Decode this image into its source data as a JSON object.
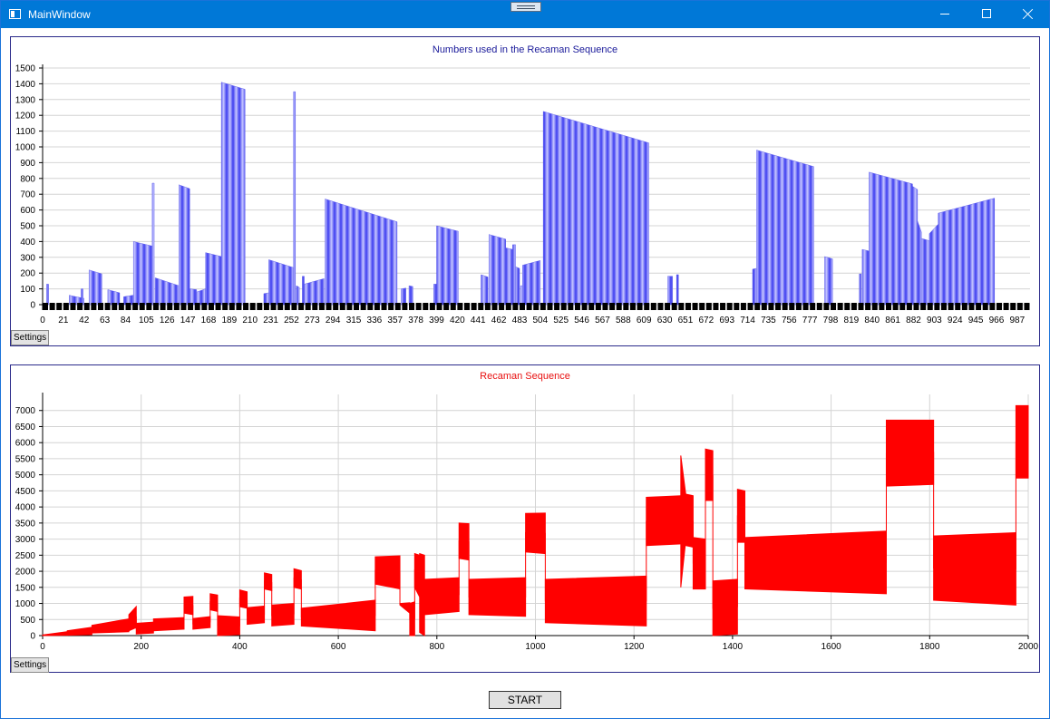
{
  "window": {
    "title": "MainWindow",
    "accent": "#0078d7"
  },
  "top_panel": {
    "settings_label": "Settings"
  },
  "bottom_panel": {
    "settings_label": "Settings"
  },
  "start_label": "START",
  "chart_data": [
    {
      "type": "bar",
      "title": "Numbers used in the Recaman Sequence",
      "title_color": "#1a1a9a",
      "bar_color": "#6a6aff",
      "ylim": [
        0,
        1500
      ],
      "y_ticks": [
        0,
        100,
        200,
        300,
        400,
        500,
        600,
        700,
        800,
        900,
        1000,
        1100,
        1200,
        1300,
        1400,
        1500
      ],
      "x_ticks": [
        0,
        21,
        42,
        63,
        84,
        105,
        126,
        147,
        168,
        189,
        210,
        231,
        252,
        273,
        294,
        315,
        336,
        357,
        378,
        399,
        420,
        441,
        462,
        483,
        504,
        525,
        546,
        567,
        588,
        609,
        630,
        651,
        672,
        693,
        714,
        735,
        756,
        777,
        798,
        819,
        840,
        861,
        882,
        903,
        924,
        945,
        966,
        987
      ],
      "xlim": [
        0,
        1000
      ],
      "grid": true,
      "segments": [
        {
          "x0": 4,
          "x1": 6,
          "y0": 130,
          "y1": 130
        },
        {
          "x0": 27,
          "x1": 30,
          "y0": 60,
          "y1": 55
        },
        {
          "x0": 30,
          "x1": 42,
          "y0": 55,
          "y1": 40
        },
        {
          "x0": 39,
          "x1": 41,
          "y0": 100,
          "y1": 100
        },
        {
          "x0": 47,
          "x1": 60,
          "y0": 220,
          "y1": 195
        },
        {
          "x0": 66,
          "x1": 78,
          "y0": 95,
          "y1": 75
        },
        {
          "x0": 82,
          "x1": 92,
          "y0": 50,
          "y1": 60
        },
        {
          "x0": 92,
          "x1": 112,
          "y0": 400,
          "y1": 370
        },
        {
          "x0": 111,
          "x1": 113,
          "y0": 770,
          "y1": 770
        },
        {
          "x0": 114,
          "x1": 138,
          "y0": 170,
          "y1": 120
        },
        {
          "x0": 138,
          "x1": 149,
          "y0": 760,
          "y1": 735
        },
        {
          "x0": 149,
          "x1": 156,
          "y0": 100,
          "y1": 95
        },
        {
          "x0": 156,
          "x1": 165,
          "y0": 80,
          "y1": 100
        },
        {
          "x0": 165,
          "x1": 181,
          "y0": 330,
          "y1": 305
        },
        {
          "x0": 181,
          "x1": 205,
          "y0": 1410,
          "y1": 1365
        },
        {
          "x0": 224,
          "x1": 229,
          "y0": 70,
          "y1": 75
        },
        {
          "x0": 229,
          "x1": 254,
          "y0": 285,
          "y1": 235
        },
        {
          "x0": 254,
          "x1": 256,
          "y0": 1350,
          "y1": 1350
        },
        {
          "x0": 257,
          "x1": 260,
          "y0": 120,
          "y1": 110
        },
        {
          "x0": 263,
          "x1": 265,
          "y0": 180,
          "y1": 180
        },
        {
          "x0": 265,
          "x1": 285,
          "y0": 130,
          "y1": 165
        },
        {
          "x0": 286,
          "x1": 359,
          "y0": 670,
          "y1": 525
        },
        {
          "x0": 363,
          "x1": 368,
          "y0": 100,
          "y1": 105
        },
        {
          "x0": 371,
          "x1": 375,
          "y0": 120,
          "y1": 115
        },
        {
          "x0": 396,
          "x1": 399,
          "y0": 130,
          "y1": 130
        },
        {
          "x0": 399,
          "x1": 421,
          "y0": 500,
          "y1": 465
        },
        {
          "x0": 444,
          "x1": 451,
          "y0": 190,
          "y1": 175
        },
        {
          "x0": 452,
          "x1": 469,
          "y0": 445,
          "y1": 415
        },
        {
          "x0": 469,
          "x1": 476,
          "y0": 360,
          "y1": 350
        },
        {
          "x0": 476,
          "x1": 479,
          "y0": 380,
          "y1": 380
        },
        {
          "x0": 479,
          "x1": 483,
          "y0": 240,
          "y1": 230
        },
        {
          "x0": 484,
          "x1": 486,
          "y0": 120,
          "y1": 120
        },
        {
          "x0": 486,
          "x1": 504,
          "y0": 250,
          "y1": 280
        },
        {
          "x0": 507,
          "x1": 614,
          "y0": 1225,
          "y1": 1025
        },
        {
          "x0": 633,
          "x1": 638,
          "y0": 180,
          "y1": 180
        },
        {
          "x0": 642,
          "x1": 644,
          "y0": 190,
          "y1": 190
        },
        {
          "x0": 719,
          "x1": 723,
          "y0": 225,
          "y1": 230
        },
        {
          "x0": 723,
          "x1": 781,
          "y0": 980,
          "y1": 875
        },
        {
          "x0": 792,
          "x1": 800,
          "y0": 305,
          "y1": 290
        },
        {
          "x0": 827,
          "x1": 829,
          "y0": 195,
          "y1": 195
        },
        {
          "x0": 830,
          "x1": 837,
          "y0": 350,
          "y1": 340
        },
        {
          "x0": 837,
          "x1": 881,
          "y0": 840,
          "y1": 765
        },
        {
          "x0": 881,
          "x1": 886,
          "y0": 750,
          "y1": 730
        },
        {
          "x0": 886,
          "x1": 890,
          "y0": 530,
          "y1": 460
        },
        {
          "x0": 890,
          "x1": 898,
          "y0": 420,
          "y1": 405
        },
        {
          "x0": 898,
          "x1": 907,
          "y0": 450,
          "y1": 510
        },
        {
          "x0": 907,
          "x1": 964,
          "y0": 580,
          "y1": 675
        }
      ]
    },
    {
      "type": "line",
      "title": "Recaman Sequence",
      "title_color": "#e81010",
      "line_color": "#ff0000",
      "xlim": [
        0,
        2000
      ],
      "ylim": [
        0,
        7500
      ],
      "x_ticks": [
        0,
        200,
        400,
        600,
        800,
        1000,
        1200,
        1400,
        1600,
        1800,
        2000
      ],
      "y_ticks": [
        0,
        500,
        1000,
        1500,
        2000,
        2500,
        3000,
        3500,
        4000,
        4500,
        5000,
        5500,
        6000,
        6500,
        7000
      ],
      "grid": true,
      "bands": [
        {
          "x0": 0,
          "x1": 50,
          "lo0": 0,
          "lo1": 10,
          "hi0": 20,
          "hi1": 120
        },
        {
          "x0": 50,
          "x1": 100,
          "lo0": 10,
          "lo1": 30,
          "hi0": 150,
          "hi1": 260
        },
        {
          "x0": 100,
          "x1": 175,
          "lo0": 80,
          "lo1": 120,
          "hi0": 320,
          "hi1": 520
        },
        {
          "x0": 175,
          "x1": 190,
          "lo0": 150,
          "lo1": 250,
          "hi0": 650,
          "hi1": 900
        },
        {
          "x0": 190,
          "x1": 225,
          "lo0": 50,
          "lo1": 80,
          "hi0": 380,
          "hi1": 420
        },
        {
          "x0": 225,
          "x1": 287,
          "lo0": 150,
          "lo1": 200,
          "hi0": 520,
          "hi1": 560
        },
        {
          "x0": 287,
          "x1": 305,
          "lo0": 700,
          "lo1": 650,
          "hi0": 1200,
          "hi1": 1220
        },
        {
          "x0": 305,
          "x1": 340,
          "lo0": 200,
          "lo1": 250,
          "hi0": 530,
          "hi1": 590
        },
        {
          "x0": 340,
          "x1": 355,
          "lo0": 800,
          "lo1": 750,
          "hi0": 1300,
          "hi1": 1260
        },
        {
          "x0": 355,
          "x1": 400,
          "lo0": 0,
          "lo1": 30,
          "hi0": 620,
          "hi1": 580
        },
        {
          "x0": 400,
          "x1": 415,
          "lo0": 900,
          "lo1": 850,
          "hi0": 1420,
          "hi1": 1360
        },
        {
          "x0": 415,
          "x1": 450,
          "lo0": 350,
          "lo1": 400,
          "hi0": 870,
          "hi1": 920
        },
        {
          "x0": 450,
          "x1": 465,
          "lo0": 1450,
          "lo1": 1400,
          "hi0": 1950,
          "hi1": 1900
        },
        {
          "x0": 465,
          "x1": 510,
          "lo0": 300,
          "lo1": 350,
          "hi0": 950,
          "hi1": 1000
        },
        {
          "x0": 510,
          "x1": 525,
          "lo0": 1500,
          "lo1": 1450,
          "hi0": 2080,
          "hi1": 2020
        },
        {
          "x0": 525,
          "x1": 675,
          "lo0": 300,
          "lo1": 150,
          "hi0": 850,
          "hi1": 1100
        },
        {
          "x0": 675,
          "x1": 725,
          "lo0": 1600,
          "lo1": 1450,
          "hi0": 2450,
          "hi1": 2480
        },
        {
          "x0": 725,
          "x1": 745,
          "lo0": 950,
          "lo1": 700,
          "hi0": 1000,
          "hi1": 1020
        },
        {
          "x0": 745,
          "x1": 755,
          "lo0": 0,
          "lo1": 0,
          "hi0": 1000,
          "hi1": 1050
        },
        {
          "x0": 755,
          "x1": 765,
          "lo0": 1500,
          "lo1": 1200,
          "hi0": 2550,
          "hi1": 2500
        },
        {
          "x0": 765,
          "x1": 775,
          "lo0": 100,
          "lo1": 0,
          "hi0": 2550,
          "hi1": 2500
        },
        {
          "x0": 775,
          "x1": 845,
          "lo0": 650,
          "lo1": 750,
          "hi0": 1750,
          "hi1": 1800
        },
        {
          "x0": 845,
          "x1": 865,
          "lo0": 2400,
          "lo1": 2350,
          "hi0": 3500,
          "hi1": 3480
        },
        {
          "x0": 865,
          "x1": 980,
          "lo0": 650,
          "lo1": 600,
          "hi0": 1750,
          "hi1": 1800
        },
        {
          "x0": 980,
          "x1": 1020,
          "lo0": 2600,
          "lo1": 2550,
          "hi0": 3800,
          "hi1": 3810
        },
        {
          "x0": 1020,
          "x1": 1225,
          "lo0": 400,
          "lo1": 300,
          "hi0": 1750,
          "hi1": 1850
        },
        {
          "x0": 1225,
          "x1": 1295,
          "lo0": 2800,
          "lo1": 2850,
          "hi0": 4300,
          "hi1": 4350
        },
        {
          "x0": 1295,
          "x1": 1305,
          "lo0": 1500,
          "lo1": 2950,
          "hi0": 5600,
          "hi1": 4400
        },
        {
          "x0": 1305,
          "x1": 1320,
          "lo0": 2800,
          "lo1": 2750,
          "hi0": 4400,
          "hi1": 4350
        },
        {
          "x0": 1320,
          "x1": 1345,
          "lo0": 1450,
          "lo1": 1450,
          "hi0": 3050,
          "hi1": 3000
        },
        {
          "x0": 1345,
          "x1": 1360,
          "lo0": 4200,
          "lo1": 4200,
          "hi0": 5800,
          "hi1": 5750
        },
        {
          "x0": 1360,
          "x1": 1410,
          "lo0": 0,
          "lo1": 50,
          "hi0": 1700,
          "hi1": 1750
        },
        {
          "x0": 1410,
          "x1": 1425,
          "lo0": 2900,
          "lo1": 2900,
          "hi0": 4550,
          "hi1": 4500
        },
        {
          "x0": 1425,
          "x1": 1712,
          "lo0": 1450,
          "lo1": 1300,
          "hi0": 3050,
          "hi1": 3250
        },
        {
          "x0": 1712,
          "x1": 1808,
          "lo0": 4650,
          "lo1": 4700,
          "hi0": 6700,
          "hi1": 6700
        },
        {
          "x0": 1808,
          "x1": 1975,
          "lo0": 1100,
          "lo1": 950,
          "hi0": 3100,
          "hi1": 3200
        },
        {
          "x0": 1975,
          "x1": 2000,
          "lo0": 4900,
          "lo1": 4900,
          "hi0": 7150,
          "hi1": 7150
        }
      ]
    }
  ]
}
